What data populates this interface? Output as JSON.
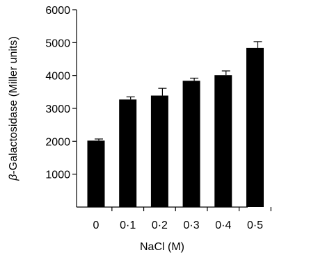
{
  "chart_data": {
    "type": "bar",
    "title": "",
    "xlabel": "NaCl (M)",
    "ylabel_symbol": "β",
    "ylabel_text": "-Galactosidase (Miller units)",
    "categories": [
      "0",
      "0·1",
      "0·2",
      "0·3",
      "0·4",
      "0·5"
    ],
    "values": [
      2020,
      3270,
      3390,
      3840,
      4010,
      4840
    ],
    "errors": [
      50,
      80,
      220,
      80,
      130,
      190
    ],
    "ylim": [
      0,
      6000
    ],
    "yticks": [
      1000,
      2000,
      3000,
      4000,
      5000,
      6000
    ],
    "ytick_labels": [
      "1000",
      "2000",
      "3000",
      "4000",
      "5000",
      "6000"
    ],
    "bar_color": "#000000",
    "grid": false,
    "legend": "none"
  }
}
